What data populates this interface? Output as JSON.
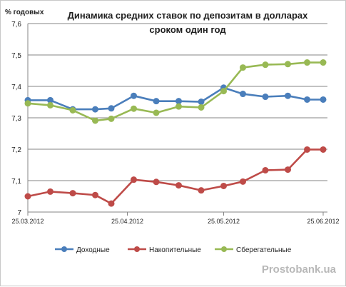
{
  "chart_data": {
    "type": "line",
    "title_lines": [
      "Динамика средних ставок по депозитам в долларах",
      "сроком один год"
    ],
    "ylabel": "% годовых",
    "ylim": [
      7.0,
      7.6
    ],
    "yticks": [
      "7",
      "7,1",
      "7,2",
      "7,3",
      "7,4",
      "7,5",
      "7,6"
    ],
    "ytick_values": [
      7.0,
      7.1,
      7.2,
      7.3,
      7.4,
      7.5,
      7.6
    ],
    "xlim": [
      "2012-03-25",
      "2012-06-25"
    ],
    "xticks": [
      "25.03.2012",
      "25.04.2012",
      "25.05.2012",
      "25.06.2012"
    ],
    "xtick_dates": [
      "2012-03-25",
      "2012-04-25",
      "2012-05-25",
      "2012-06-25"
    ],
    "grid": "horizontal",
    "legend_position": "bottom",
    "x": [
      "2012-03-25",
      "2012-04-01",
      "2012-04-08",
      "2012-04-15",
      "2012-04-20",
      "2012-04-27",
      "2012-05-04",
      "2012-05-11",
      "2012-05-18",
      "2012-05-25",
      "2012-05-31",
      "2012-06-07",
      "2012-06-14",
      "2012-06-20",
      "2012-06-25"
    ],
    "series": [
      {
        "name": "Доходные",
        "color": "#4a7ebb",
        "values": [
          7.356,
          7.356,
          7.327,
          7.327,
          7.33,
          7.37,
          7.353,
          7.353,
          7.351,
          7.396,
          7.376,
          7.367,
          7.37,
          7.358,
          7.358
        ]
      },
      {
        "name": "Накопительные",
        "color": "#be4b48",
        "values": [
          7.05,
          7.065,
          7.06,
          7.054,
          7.027,
          7.103,
          7.096,
          7.085,
          7.069,
          7.083,
          7.097,
          7.133,
          7.135,
          7.199,
          7.199
        ]
      },
      {
        "name": "Сберегательные",
        "color": "#98b954",
        "values": [
          7.346,
          7.34,
          7.324,
          7.291,
          7.297,
          7.329,
          7.316,
          7.336,
          7.333,
          7.385,
          7.46,
          7.469,
          7.471,
          7.476,
          7.476
        ]
      }
    ],
    "watermark": "Prostobank.ua"
  }
}
